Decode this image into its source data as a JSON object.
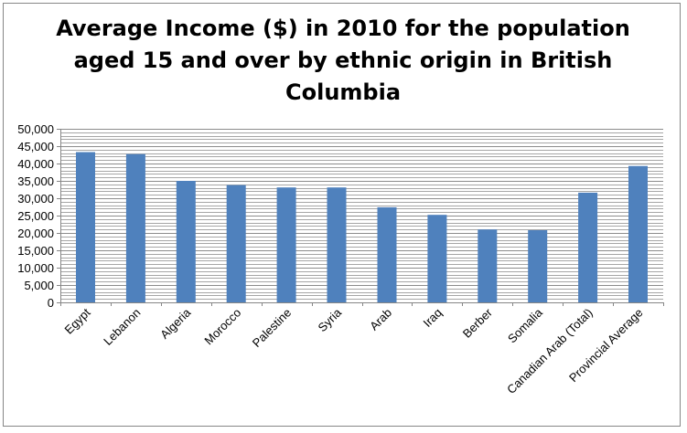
{
  "chart_data": {
    "type": "bar",
    "title": "Average Income ($) in 2010 for the population aged 15 and over by ethnic origin in British Columbia",
    "xlabel": "",
    "ylabel": "",
    "categories": [
      "Egypt",
      "Lebanon",
      "Algeria",
      "Morocco",
      "Palestine",
      "Syria",
      "Arab",
      "Iraq",
      "Berber",
      "Somalia",
      "Canadian Arab (Total)",
      "Provincial Average"
    ],
    "values": [
      43300,
      42700,
      35000,
      33800,
      33100,
      33100,
      27400,
      25200,
      21000,
      20800,
      31600,
      39300
    ],
    "ylim": [
      0,
      50000
    ],
    "yticks": [
      0,
      5000,
      10000,
      15000,
      20000,
      25000,
      30000,
      35000,
      40000,
      45000,
      50000
    ],
    "ytick_labels": [
      "0",
      "5,000",
      "10,000",
      "15,000",
      "20,000",
      "25,000",
      "30,000",
      "35,000",
      "40,000",
      "45,000",
      "50,000"
    ],
    "minor_grid_step": 1000,
    "grid": true,
    "legend": "none",
    "bar_color": "#4f81bd"
  }
}
